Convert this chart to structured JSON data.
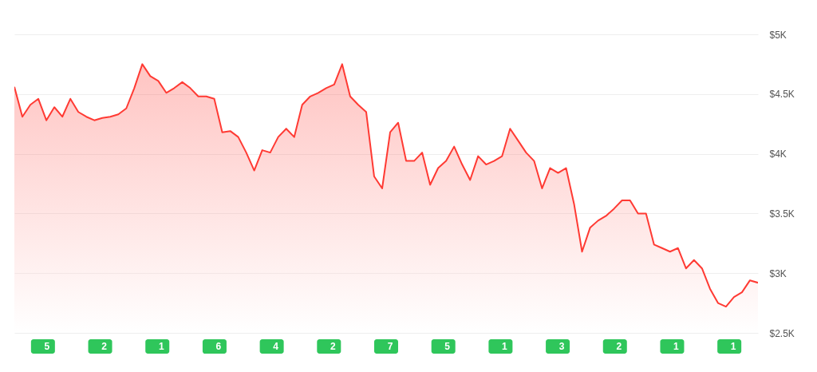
{
  "chart_data": {
    "type": "area",
    "categories": [
      null,
      null,
      null,
      null,
      null,
      null,
      null,
      null,
      null,
      null,
      null,
      null,
      null,
      null,
      null,
      null,
      null,
      null,
      null,
      null,
      null,
      null,
      null,
      null,
      null,
      null,
      null,
      null,
      null,
      null,
      null,
      null,
      null,
      null,
      null,
      null,
      null,
      null,
      null,
      null,
      null,
      null,
      null,
      null,
      null,
      null,
      null,
      null,
      null,
      null,
      null,
      null,
      null,
      null,
      null,
      null,
      null,
      null,
      null,
      null,
      null,
      null,
      null,
      null,
      null,
      null,
      null,
      null,
      null,
      null,
      null,
      null,
      null,
      null,
      null,
      null,
      null,
      null,
      null,
      null,
      null,
      null,
      null,
      null,
      null,
      null,
      null,
      null,
      null,
      null,
      null,
      null,
      null,
      null
    ],
    "series": [
      {
        "color": "#ff3a33",
        "values": [
          4560,
          4310,
          4410,
          4460,
          4280,
          4390,
          4310,
          4460,
          4350,
          4310,
          4280,
          4300,
          4310,
          4330,
          4380,
          4550,
          4750,
          4650,
          4610,
          4510,
          4550,
          4600,
          4550,
          4480,
          4480,
          4460,
          4180,
          4190,
          4140,
          4010,
          3860,
          4030,
          4010,
          4140,
          4210,
          4140,
          4410,
          4480,
          4510,
          4550,
          4580,
          4750,
          4480,
          4410,
          4350,
          3810,
          3710,
          4180,
          4260,
          3940,
          3940,
          4010,
          3740,
          3880,
          3940,
          4060,
          3910,
          3780,
          3980,
          3910,
          3940,
          3980,
          4210,
          4110,
          4010,
          3940,
          3710,
          3880,
          3840,
          3880,
          3580,
          3180,
          3380,
          3440,
          3480,
          3540,
          3610,
          3610,
          3500,
          3500,
          3240,
          3210,
          3180,
          3210,
          3040,
          3110,
          3040,
          2870,
          2750,
          2720,
          2800,
          2840,
          2940,
          2920
        ]
      }
    ],
    "ylim": [
      2500,
      5000
    ],
    "yticks": [
      {
        "value": 2500,
        "label": "$2.5K"
      },
      {
        "value": 3000,
        "label": "$3K"
      },
      {
        "value": 3500,
        "label": "$3.5K"
      },
      {
        "value": 4000,
        "label": "$4K"
      },
      {
        "value": 4500,
        "label": "$4.5K"
      },
      {
        "value": 5000,
        "label": "$5K"
      }
    ],
    "grid": "y",
    "annotations": [
      "5",
      "2",
      "1",
      "6",
      "4",
      "2",
      "7",
      "5",
      "1",
      "3",
      "2",
      "1",
      "1"
    ]
  }
}
